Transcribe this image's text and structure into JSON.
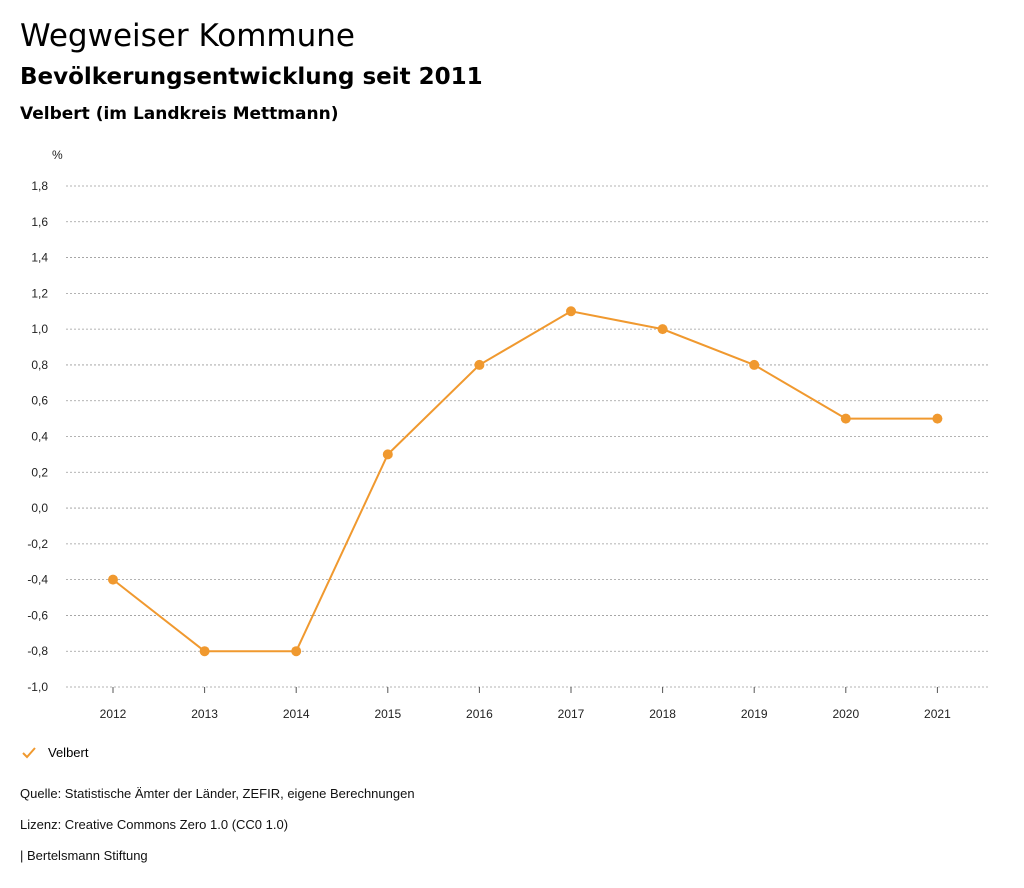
{
  "header": {
    "title": "Wegweiser Kommune",
    "subtitle": "Bevölkerungsentwicklung seit 2011",
    "region": "Velbert (im Landkreis Mettmann)"
  },
  "chart_data": {
    "type": "line",
    "ylabel": "%",
    "ylim": [
      -1.0,
      1.8
    ],
    "yticks": [
      "-1,0",
      "-0,8",
      "-0,6",
      "-0,4",
      "-0,2",
      "0,0",
      "0,2",
      "0,4",
      "0,6",
      "0,8",
      "1,0",
      "1,2",
      "1,4",
      "1,6",
      "1,8"
    ],
    "x": [
      "2012",
      "2013",
      "2014",
      "2015",
      "2016",
      "2017",
      "2018",
      "2019",
      "2020",
      "2021"
    ],
    "series": [
      {
        "name": "Velbert",
        "values": [
          -0.4,
          -0.8,
          -0.8,
          0.3,
          0.8,
          1.1,
          1.0,
          0.8,
          0.5,
          0.5
        ],
        "color": "#F0992F"
      }
    ],
    "grid": true,
    "legend_position": "bottom-left"
  },
  "legend": {
    "items": [
      {
        "label": "Velbert",
        "icon": "check-icon"
      }
    ]
  },
  "footer": {
    "source": "Quelle: Statistische Ämter der Länder, ZEFIR, eigene Berechnungen",
    "license": "Lizenz: Creative Commons Zero 1.0 (CC0 1.0)",
    "publisher": "| Bertelsmann Stiftung"
  }
}
